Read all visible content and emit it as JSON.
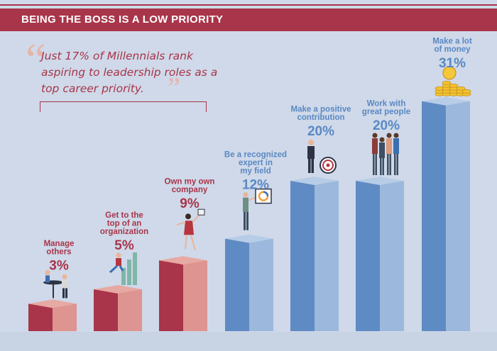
{
  "header": {
    "title": "BEING THE BOSS IS A LOW PRIORITY"
  },
  "quote": {
    "text": "Just 17% of Millennials rank aspiring to leadership roles as a top career priority."
  },
  "colors": {
    "red": "#a8354a",
    "blue": "#5f8bc4",
    "label_red": "#a8354a",
    "label_blue": "#5a88c3",
    "background": "#cfd9e9"
  },
  "chart_data": {
    "type": "bar",
    "title": "BEING THE BOSS IS A LOW PRIORITY",
    "ylim": [
      0,
      35
    ],
    "categories": [
      "Manage others",
      "Get to the top of an organization",
      "Own my own company",
      "Be a recognized expert in my field",
      "Make a positive contribution",
      "Work with great people",
      "Make a lot of money"
    ],
    "label_lines": [
      [
        "Manage",
        "others"
      ],
      [
        "Get to the",
        "top of an",
        "organization"
      ],
      [
        "Own my own",
        "company"
      ],
      [
        "Be a recognized",
        "expert in",
        "my field"
      ],
      [
        "Make a positive",
        "contribution"
      ],
      [
        "Work with",
        "great people"
      ],
      [
        "Make a lot",
        "of money"
      ]
    ],
    "values": [
      3,
      5,
      9,
      12,
      20,
      20,
      31
    ],
    "value_labels": [
      "3%",
      "5%",
      "9%",
      "12%",
      "20%",
      "20%",
      "31%"
    ],
    "bar_colors": [
      "red",
      "red",
      "red",
      "blue",
      "blue",
      "blue",
      "blue"
    ],
    "icons": [
      "meeting-people-icon",
      "climbing-person-icon",
      "jumping-woman-icon",
      "presenter-icon",
      "businessman-target-icon",
      "group-people-icon",
      "coin-stacks-icon"
    ]
  }
}
